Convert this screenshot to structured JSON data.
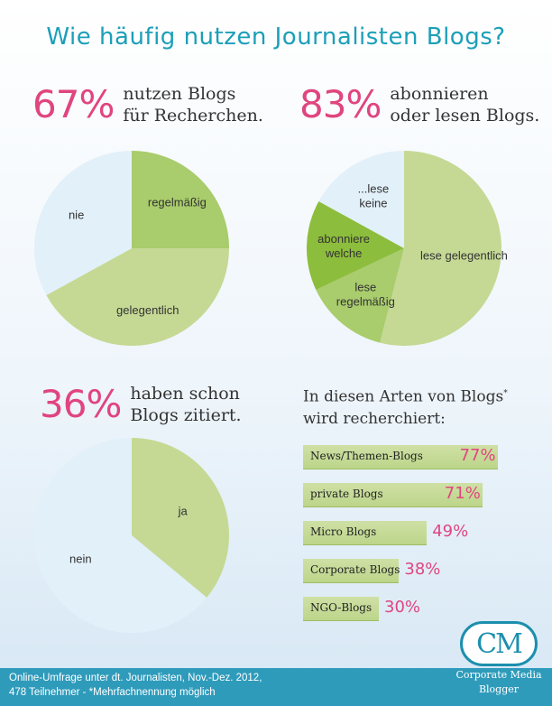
{
  "title": "Wie häufig nutzen Journalisten Blogs?",
  "stats": [
    {
      "pct": "67%",
      "line1": "nutzen Blogs",
      "line2": "für Recherchen."
    },
    {
      "pct": "83%",
      "line1": "abonnieren",
      "line2": "oder lesen Blogs."
    },
    {
      "pct": "36%",
      "line1": "haben schon",
      "line2": "Blogs zitiert."
    }
  ],
  "bars_title": {
    "line1": "In diesen Arten von Blogs",
    "marker": "*",
    "line2": "wird recherchiert:"
  },
  "colors": {
    "accent_pink": "#e0457f",
    "title_teal": "#1c9fb8",
    "green_light": "#c5d994",
    "green_mid": "#a9cc6c",
    "green_dark": "#8dbd3c",
    "blue_light": "#e2f0fa",
    "footer": "#2f9bbb"
  },
  "chart_data": [
    {
      "type": "pie",
      "categories": [
        "regelmäßig",
        "gelegentlich",
        "nie"
      ],
      "values": [
        25,
        42,
        33
      ],
      "colors": [
        "#a9cc6c",
        "#c5d994",
        "#e2f0fa"
      ]
    },
    {
      "type": "pie",
      "categories": [
        "lese gelegentlich",
        "lese regelmäßig",
        "abonniere welche",
        "...lese keine"
      ],
      "values": [
        54,
        14,
        15,
        17
      ],
      "colors": [
        "#c5d994",
        "#a9cc6c",
        "#8dbd3c",
        "#e2f0fa"
      ]
    },
    {
      "type": "pie",
      "categories": [
        "ja",
        "nein"
      ],
      "values": [
        36,
        64
      ],
      "colors": [
        "#c5d994",
        "#e2f0fa"
      ]
    },
    {
      "type": "bar",
      "categories": [
        "News/Themen-Blogs",
        "private Blogs",
        "Micro Blogs",
        "Corporate Blogs",
        "NGO-Blogs"
      ],
      "values": [
        77,
        71,
        49,
        38,
        30
      ],
      "value_labels": [
        "77%",
        "71%",
        "49%",
        "38%",
        "30%"
      ]
    }
  ],
  "footer": {
    "line1": "Online-Umfrage unter dt. Journalisten, Nov.-Dez. 2012,",
    "line2": "478 Teilnehmer - *Mehrfachnennung möglich"
  },
  "logo": {
    "mark": "CM",
    "line1": "Corporate Media",
    "line2": "Blogger"
  }
}
